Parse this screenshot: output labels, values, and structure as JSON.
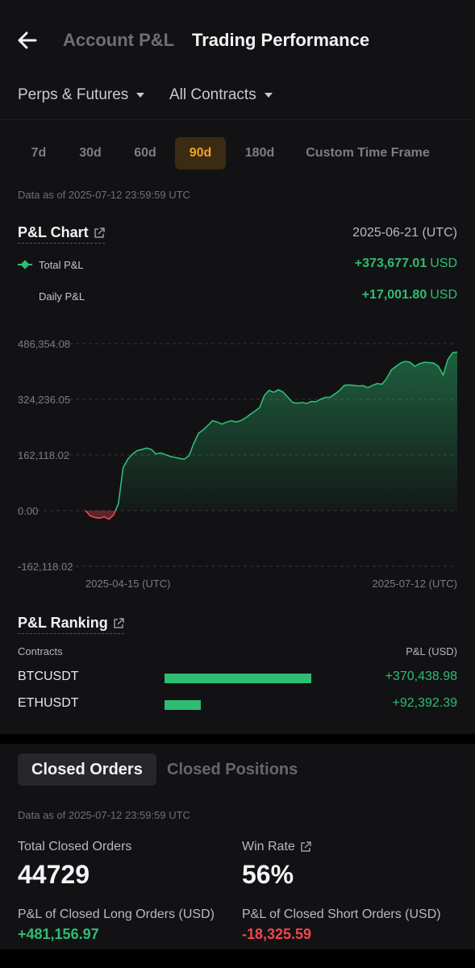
{
  "header": {
    "tabs": [
      {
        "label": "Account P&L",
        "active": false
      },
      {
        "label": "Trading Performance",
        "active": true
      }
    ]
  },
  "filters": {
    "market": "Perps & Futures",
    "contracts": "All Contracts"
  },
  "periods": {
    "options": [
      "7d",
      "30d",
      "60d",
      "90d",
      "180d",
      "Custom Time Frame"
    ],
    "selected": "90d"
  },
  "data_as_of": "Data as of 2025-07-12 23:59:59 UTC",
  "pl_chart": {
    "title": "P&L Chart",
    "selected_date": "2025-06-21 (UTC)",
    "total_label": "Total P&L",
    "total_value": "+373,677.01",
    "daily_label": "Daily P&L",
    "daily_value": "+17,001.80",
    "unit": "USD"
  },
  "chart_data": {
    "type": "area",
    "title": "P&L Chart",
    "y_ticks": [
      "486,354.08",
      "324,236.05",
      "162,118.02",
      "0.00",
      "-162,118.02"
    ],
    "y_tick_values": [
      486354.08,
      324236.05,
      162118.02,
      0,
      -162118.02
    ],
    "x_ticks": [
      "2025-04-15 (UTC)",
      "2025-07-12 (UTC)"
    ],
    "ylim": [
      -162118.02,
      486354.08
    ],
    "grid": true,
    "colors": {
      "positive": "#2ebd73",
      "negative": "#f0464f"
    },
    "series": [
      {
        "values": [
          0,
          -15000,
          -20000,
          -22000,
          -18000,
          -25000,
          -12000,
          20000,
          125000,
          150000,
          165000,
          175000,
          178000,
          182000,
          178000,
          165000,
          168000,
          163000,
          158000,
          155000,
          152000,
          150000,
          160000,
          195000,
          225000,
          235000,
          248000,
          262000,
          258000,
          252000,
          258000,
          262000,
          258000,
          262000,
          270000,
          280000,
          290000,
          300000,
          335000,
          350000,
          345000,
          352000,
          345000,
          330000,
          315000,
          313000,
          315000,
          312000,
          318000,
          317000,
          325000,
          330000,
          330000,
          340000,
          350000,
          365000,
          366000,
          365000,
          363000,
          364000,
          358000,
          365000,
          370000,
          368000,
          385000,
          410000,
          420000,
          430000,
          435000,
          432000,
          420000,
          428000,
          432000,
          431000,
          430000,
          420000,
          395000,
          440000,
          460000,
          462000
        ]
      }
    ]
  },
  "ranking": {
    "title": "P&L Ranking",
    "col_contracts": "Contracts",
    "col_pl": "P&L (USD)",
    "rows": [
      {
        "name": "BTCUSDT",
        "value": "+370,438.98",
        "amount": 370438.98
      },
      {
        "name": "ETHUSDT",
        "value": "+92,392.39",
        "amount": 92392.39
      }
    ]
  },
  "orders": {
    "tabs": [
      {
        "label": "Closed Orders",
        "active": true
      },
      {
        "label": "Closed Positions",
        "active": false
      }
    ],
    "data_as_of": "Data as of 2025-07-12 23:59:59 UTC",
    "total_label": "Total Closed Orders",
    "total_value": "44729",
    "winrate_label": "Win Rate",
    "winrate_value": "56%",
    "long_label": "P&L of Closed Long Orders (USD)",
    "long_value": "+481,156.97",
    "short_label": "P&L of Closed Short Orders (USD)",
    "short_value": "-18,325.59"
  }
}
